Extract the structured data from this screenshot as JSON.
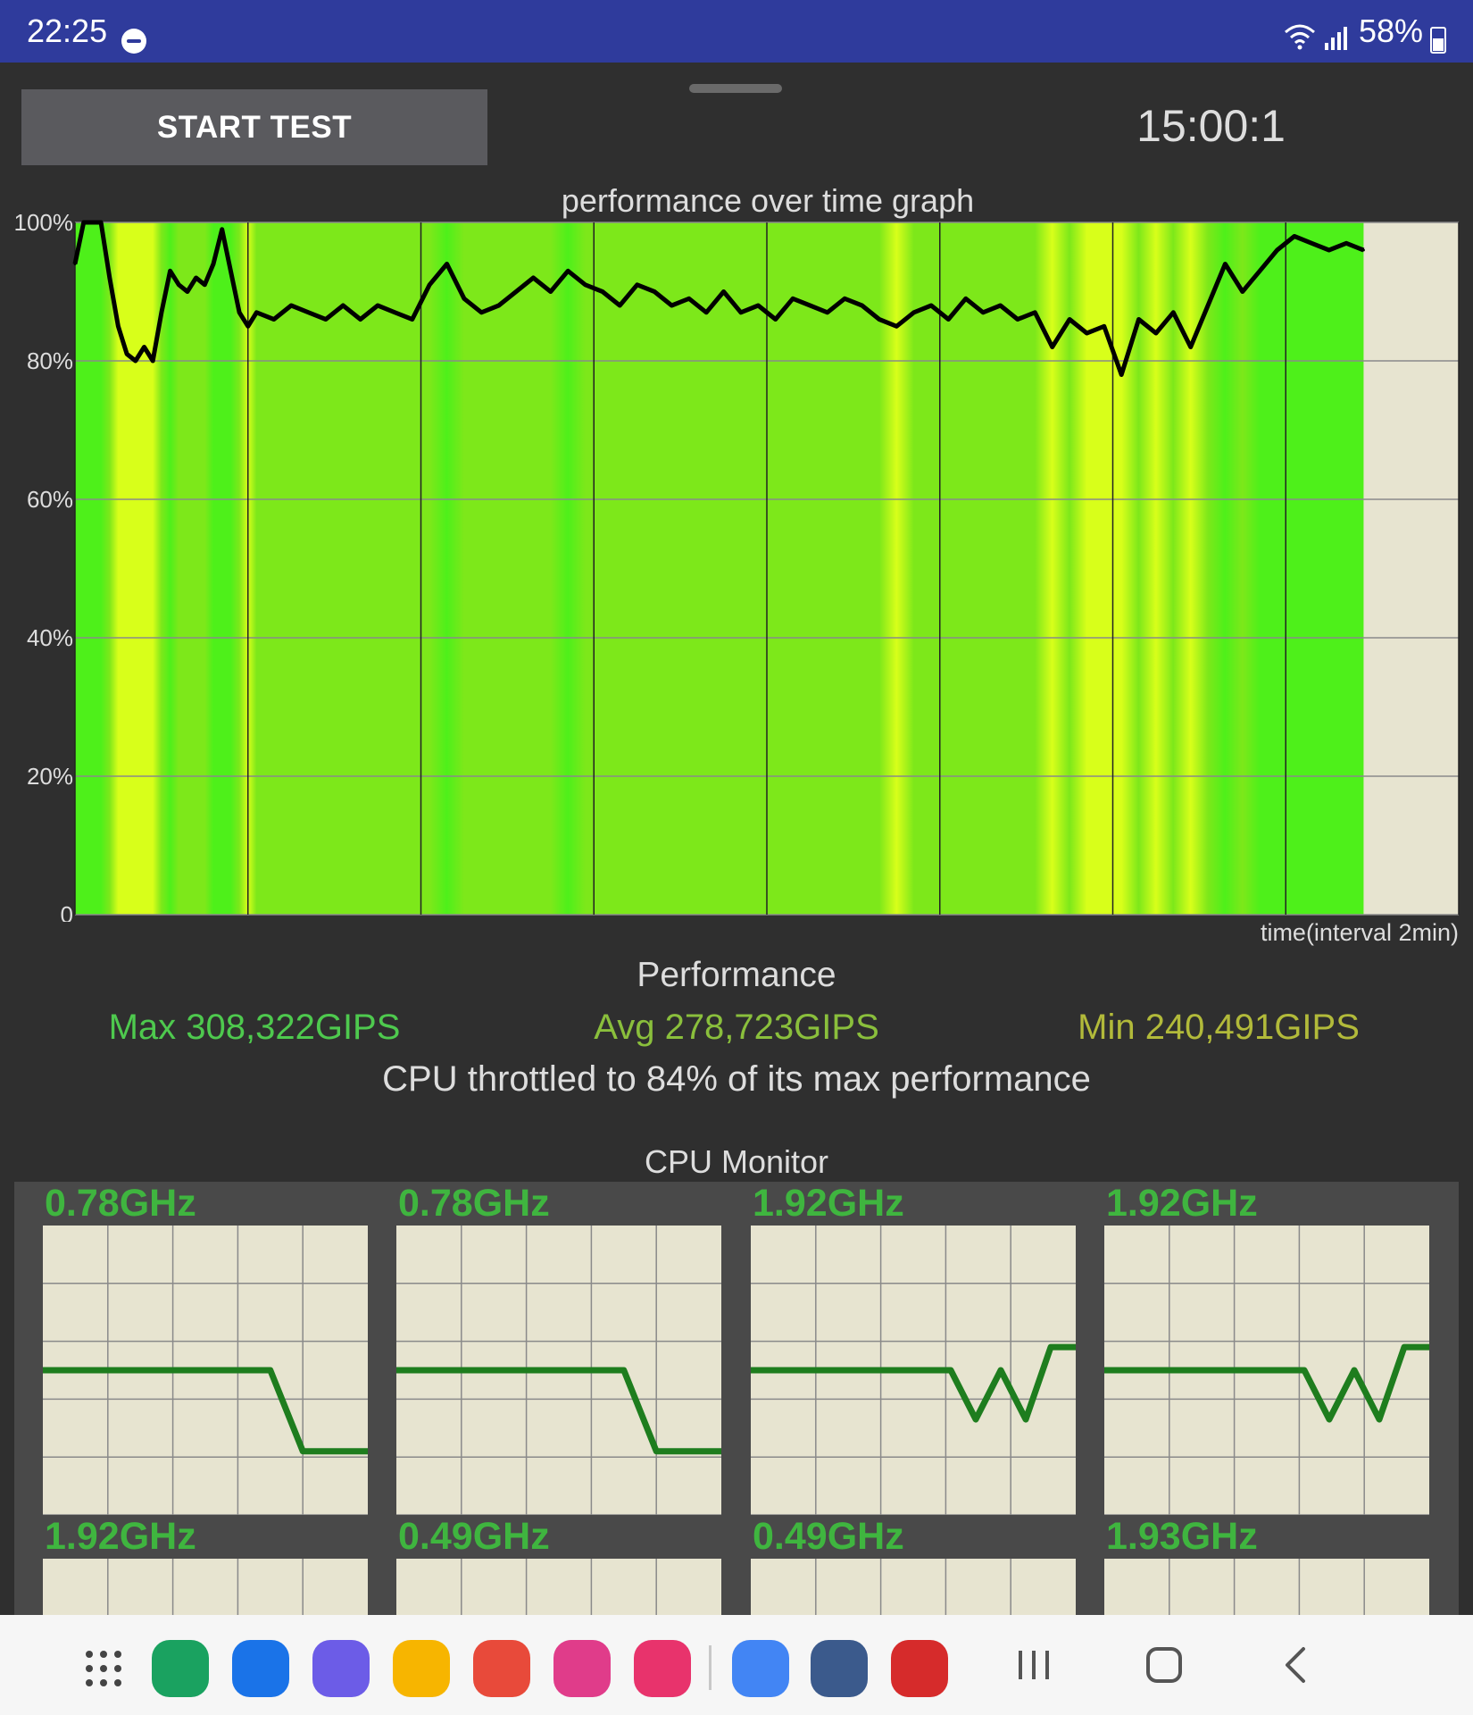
{
  "status_bar": {
    "time": "22:25",
    "battery": "58%",
    "icons": [
      "do-not-disturb-icon",
      "wifi-icon",
      "signal-icon",
      "battery-icon"
    ]
  },
  "controls": {
    "start_label": "START TEST",
    "timer": "15:00:1"
  },
  "perf_graph": {
    "title": "performance over time graph",
    "x_label": "time(interval 2min)",
    "y_ticks": [
      "100%",
      "80%",
      "60%",
      "40%",
      "20%",
      "0"
    ]
  },
  "performance": {
    "title": "Performance",
    "max": "Max 308,322GIPS",
    "avg": "Avg 278,723GIPS",
    "min": "Min 240,491GIPS",
    "throttle": "CPU throttled to 84% of its max performance"
  },
  "cpu_monitor": {
    "title": "CPU Monitor",
    "cores": [
      {
        "freq": "0.78GHz"
      },
      {
        "freq": "0.78GHz"
      },
      {
        "freq": "1.92GHz"
      },
      {
        "freq": "1.92GHz"
      },
      {
        "freq": "1.92GHz"
      },
      {
        "freq": "0.49GHz"
      },
      {
        "freq": "0.49GHz"
      },
      {
        "freq": "1.93GHz"
      }
    ]
  },
  "dock": {
    "apps": [
      {
        "name": "app-drawer-icon",
        "color": "#3a3a3a"
      },
      {
        "name": "phone-icon",
        "color": "#1aa260"
      },
      {
        "name": "messages-icon",
        "color": "#1a73e8"
      },
      {
        "name": "internet-icon",
        "color": "#6c5ce7"
      },
      {
        "name": "my-files-icon",
        "color": "#f7b500"
      },
      {
        "name": "notes-icon",
        "color": "#e84a3a"
      },
      {
        "name": "gallery-icon",
        "color": "#e03c8a"
      },
      {
        "name": "camera-icon",
        "color": "#e8336c"
      },
      {
        "name": "photos-icon",
        "color": "#4285f4"
      },
      {
        "name": "settings-icon",
        "color": "#3b5a8c"
      },
      {
        "name": "antutu-icon",
        "color": "#d62b2b"
      }
    ],
    "nav_icons": [
      "recents-icon",
      "home-icon",
      "back-icon"
    ]
  },
  "chart_data": [
    {
      "type": "area",
      "title": "performance over time graph",
      "xlabel": "time(interval 2min)",
      "ylabel": "",
      "ylim": [
        0,
        100
      ],
      "y_ticks": [
        0,
        20,
        40,
        60,
        80,
        100
      ],
      "x_interval_minutes": 2,
      "x_range_minutes": [
        0,
        16
      ],
      "grid": true,
      "series": [
        {
          "values": [
            [
              0.0,
              94
            ],
            [
              0.1,
              100
            ],
            [
              0.3,
              100
            ],
            [
              0.4,
              92
            ],
            [
              0.5,
              85
            ],
            [
              0.6,
              81
            ],
            [
              0.7,
              80
            ],
            [
              0.8,
              82
            ],
            [
              0.9,
              80
            ],
            [
              1.0,
              87
            ],
            [
              1.1,
              93
            ],
            [
              1.2,
              91
            ],
            [
              1.3,
              90
            ],
            [
              1.4,
              92
            ],
            [
              1.5,
              91
            ],
            [
              1.6,
              94
            ],
            [
              1.7,
              99
            ],
            [
              1.8,
              93
            ],
            [
              1.9,
              87
            ],
            [
              2.0,
              85
            ],
            [
              2.1,
              87
            ],
            [
              2.3,
              86
            ],
            [
              2.5,
              88
            ],
            [
              2.7,
              87
            ],
            [
              2.9,
              86
            ],
            [
              3.1,
              88
            ],
            [
              3.3,
              86
            ],
            [
              3.5,
              88
            ],
            [
              3.7,
              87
            ],
            [
              3.9,
              86
            ],
            [
              4.1,
              91
            ],
            [
              4.3,
              94
            ],
            [
              4.5,
              89
            ],
            [
              4.7,
              87
            ],
            [
              4.9,
              88
            ],
            [
              5.1,
              90
            ],
            [
              5.3,
              92
            ],
            [
              5.5,
              90
            ],
            [
              5.7,
              93
            ],
            [
              5.9,
              91
            ],
            [
              6.1,
              90
            ],
            [
              6.3,
              88
            ],
            [
              6.5,
              91
            ],
            [
              6.7,
              90
            ],
            [
              6.9,
              88
            ],
            [
              7.1,
              89
            ],
            [
              7.3,
              87
            ],
            [
              7.5,
              90
            ],
            [
              7.7,
              87
            ],
            [
              7.9,
              88
            ],
            [
              8.1,
              86
            ],
            [
              8.3,
              89
            ],
            [
              8.5,
              88
            ],
            [
              8.7,
              87
            ],
            [
              8.9,
              89
            ],
            [
              9.1,
              88
            ],
            [
              9.3,
              86
            ],
            [
              9.5,
              85
            ],
            [
              9.7,
              87
            ],
            [
              9.9,
              88
            ],
            [
              10.1,
              86
            ],
            [
              10.3,
              89
            ],
            [
              10.5,
              87
            ],
            [
              10.7,
              88
            ],
            [
              10.9,
              86
            ],
            [
              11.1,
              87
            ],
            [
              11.3,
              82
            ],
            [
              11.5,
              86
            ],
            [
              11.7,
              84
            ],
            [
              11.9,
              85
            ],
            [
              12.1,
              78
            ],
            [
              12.3,
              86
            ],
            [
              12.5,
              84
            ],
            [
              12.7,
              87
            ],
            [
              12.9,
              82
            ],
            [
              13.1,
              88
            ],
            [
              13.3,
              94
            ],
            [
              13.5,
              90
            ],
            [
              13.7,
              93
            ],
            [
              13.9,
              96
            ],
            [
              14.1,
              98
            ],
            [
              14.3,
              97
            ],
            [
              14.5,
              96
            ],
            [
              14.7,
              97
            ],
            [
              14.9,
              96
            ]
          ]
        }
      ]
    },
    {
      "type": "line",
      "title": "0.78GHz",
      "ylim": [
        0,
        1
      ],
      "grid": true,
      "series": [
        {
          "values": [
            0.5,
            0.5,
            0.5,
            0.5,
            0.5,
            0.5,
            0.5,
            0.5,
            0.22,
            0.22,
            0.22
          ]
        }
      ]
    },
    {
      "type": "line",
      "title": "0.78GHz",
      "ylim": [
        0,
        1
      ],
      "grid": true,
      "series": [
        {
          "values": [
            0.5,
            0.5,
            0.5,
            0.5,
            0.5,
            0.5,
            0.5,
            0.5,
            0.22,
            0.22,
            0.22
          ]
        }
      ]
    },
    {
      "type": "line",
      "title": "1.92GHz",
      "ylim": [
        0,
        1
      ],
      "grid": true,
      "series": [
        {
          "values": [
            0.5,
            0.5,
            0.5,
            0.5,
            0.5,
            0.5,
            0.5,
            0.5,
            0.5,
            0.33,
            0.5,
            0.33,
            0.58,
            0.58
          ]
        }
      ]
    },
    {
      "type": "line",
      "title": "1.92GHz",
      "ylim": [
        0,
        1
      ],
      "grid": true,
      "series": [
        {
          "values": [
            0.5,
            0.5,
            0.5,
            0.5,
            0.5,
            0.5,
            0.5,
            0.5,
            0.5,
            0.33,
            0.5,
            0.33,
            0.58,
            0.58
          ]
        }
      ]
    }
  ],
  "colors": {
    "status_bar": "#2f3b9c",
    "background": "#2f2f2f",
    "graph_bg": "#e7e4d0",
    "bar_green": "#7de81a",
    "bar_yellow": "#d8ff1a",
    "line": "#000000",
    "core_line": "#1e7d1e",
    "max_text": "#4ec94e",
    "avg_text": "#8abf3c",
    "min_text": "#b2ba3a"
  }
}
